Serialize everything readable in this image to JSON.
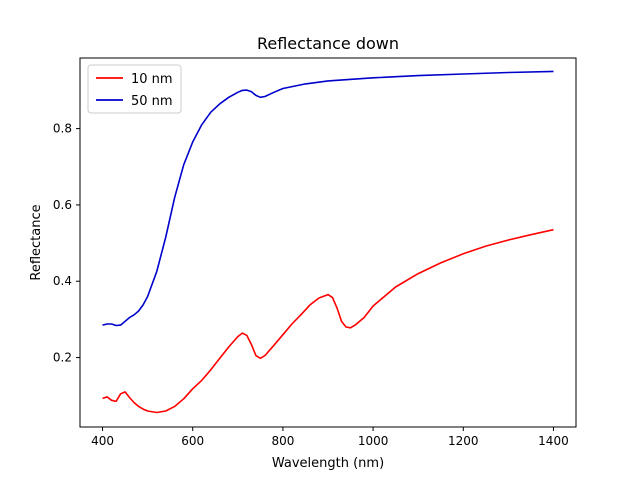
{
  "chart_data": {
    "type": "line",
    "title": "Reflectance down",
    "xlabel": "Wavelength (nm)",
    "ylabel": "Reflectance",
    "xlim": [
      350,
      1450
    ],
    "ylim": [
      0.018,
      0.985
    ],
    "xticks": [
      400,
      600,
      800,
      1000,
      1200,
      1400
    ],
    "yticks": [
      0.2,
      0.4,
      0.6,
      0.8
    ],
    "ytick_labels": [
      "0.2",
      "0.4",
      "0.6",
      "0.8"
    ],
    "grid": false,
    "legend_position": "top-left",
    "series": [
      {
        "name": "10 nm",
        "color": "#ff0000",
        "x": [
          400,
          410,
          420,
          430,
          440,
          450,
          460,
          470,
          480,
          490,
          500,
          520,
          540,
          560,
          580,
          600,
          620,
          640,
          660,
          680,
          700,
          710,
          720,
          730,
          740,
          750,
          760,
          780,
          800,
          820,
          840,
          860,
          880,
          900,
          910,
          920,
          930,
          940,
          950,
          960,
          980,
          1000,
          1050,
          1100,
          1150,
          1200,
          1250,
          1300,
          1350,
          1400
        ],
        "values": [
          0.093,
          0.097,
          0.088,
          0.085,
          0.105,
          0.11,
          0.095,
          0.082,
          0.072,
          0.065,
          0.06,
          0.056,
          0.06,
          0.072,
          0.092,
          0.118,
          0.14,
          0.168,
          0.198,
          0.228,
          0.255,
          0.264,
          0.258,
          0.235,
          0.205,
          0.198,
          0.205,
          0.232,
          0.26,
          0.288,
          0.312,
          0.338,
          0.356,
          0.365,
          0.357,
          0.33,
          0.295,
          0.28,
          0.278,
          0.285,
          0.305,
          0.335,
          0.385,
          0.42,
          0.448,
          0.472,
          0.492,
          0.508,
          0.522,
          0.535
        ]
      },
      {
        "name": "50 nm",
        "color": "#0000cc",
        "x": [
          400,
          410,
          420,
          430,
          440,
          450,
          460,
          470,
          480,
          490,
          500,
          520,
          540,
          560,
          580,
          600,
          620,
          640,
          660,
          680,
          700,
          710,
          720,
          730,
          740,
          750,
          760,
          780,
          800,
          850,
          900,
          1000,
          1100,
          1200,
          1300,
          1400
        ],
        "values": [
          0.285,
          0.288,
          0.288,
          0.284,
          0.285,
          0.295,
          0.305,
          0.312,
          0.322,
          0.338,
          0.36,
          0.425,
          0.515,
          0.62,
          0.705,
          0.765,
          0.81,
          0.843,
          0.865,
          0.882,
          0.895,
          0.9,
          0.901,
          0.897,
          0.887,
          0.882,
          0.884,
          0.895,
          0.905,
          0.917,
          0.925,
          0.933,
          0.939,
          0.943,
          0.947,
          0.95
        ]
      }
    ]
  }
}
